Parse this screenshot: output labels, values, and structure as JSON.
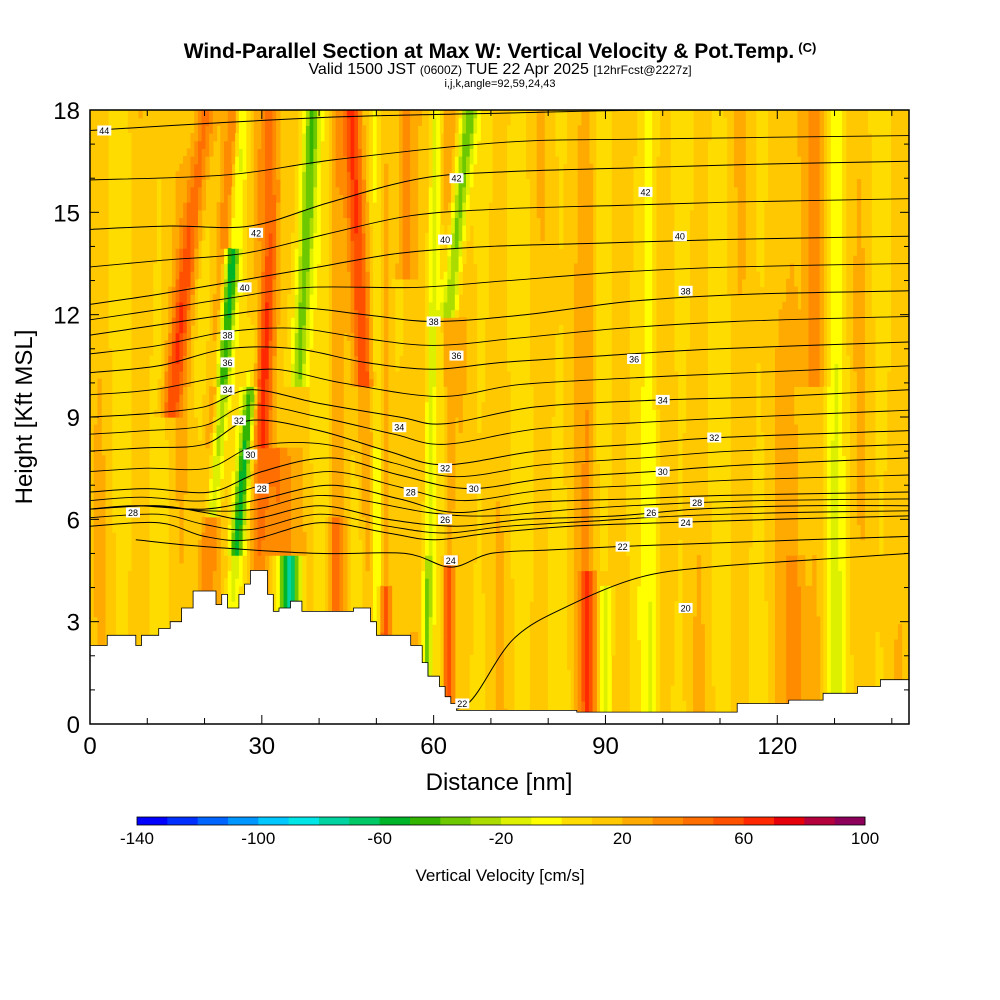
{
  "title": {
    "line1": "Wind-Parallel Section at Max W: Vertical Velocity & Pot.Temp.",
    "line1_mark": "(C)",
    "line2_a": "Valid 1500 JST",
    "line2_b": "(0600Z)",
    "line2_c": "TUE 22 Apr 2025",
    "line2_d": "[12hrFcst@2227z]",
    "line3": "i,j,k,angle=92,59,24,43"
  },
  "chart_data": {
    "type": "heatmap",
    "xlabel": "Distance [nm]",
    "ylabel": "Height [Kft MSL]",
    "xlim": [
      0,
      143
    ],
    "ylim": [
      0,
      18
    ],
    "x_ticks": [
      0,
      30,
      60,
      90,
      120
    ],
    "y_ticks": [
      0,
      3,
      6,
      9,
      12,
      15,
      18
    ],
    "colorbar": {
      "label": "Vertical Velocity [cm/s]",
      "min": -140,
      "max": 100,
      "step": 10,
      "tick_labels": [
        "-140",
        "-100",
        "-60",
        "-20",
        "20",
        "60",
        "100"
      ],
      "colors": [
        "#0000ff",
        "#0030ff",
        "#0064ff",
        "#0096ff",
        "#00c8ff",
        "#00e6e6",
        "#00d2a0",
        "#00c864",
        "#00b428",
        "#32b400",
        "#6ec800",
        "#aadc00",
        "#dcf000",
        "#ffff00",
        "#ffdc00",
        "#ffc800",
        "#ffaa00",
        "#ff8c00",
        "#ff6e00",
        "#ff5000",
        "#ff2800",
        "#e6000a",
        "#b4003c",
        "#8c005a",
        "#64008c"
      ]
    },
    "terrain": [
      [
        0,
        2.3
      ],
      [
        3,
        2.6
      ],
      [
        7,
        2.6
      ],
      [
        8,
        2.3
      ],
      [
        9,
        2.6
      ],
      [
        11,
        2.6
      ],
      [
        12,
        2.8
      ],
      [
        14,
        3.0
      ],
      [
        16,
        3.4
      ],
      [
        18,
        3.9
      ],
      [
        21,
        3.9
      ],
      [
        22,
        3.5
      ],
      [
        23,
        3.8
      ],
      [
        24,
        3.4
      ],
      [
        25,
        3.4
      ],
      [
        26,
        3.8
      ],
      [
        27,
        4.1
      ],
      [
        28,
        4.5
      ],
      [
        30,
        4.5
      ],
      [
        31,
        3.8
      ],
      [
        32,
        3.3
      ],
      [
        33,
        3.4
      ],
      [
        35,
        3.6
      ],
      [
        37,
        3.3
      ],
      [
        45,
        3.3
      ],
      [
        46,
        3.4
      ],
      [
        48,
        3.4
      ],
      [
        49,
        3.0
      ],
      [
        50,
        2.6
      ],
      [
        55,
        2.6
      ],
      [
        56,
        2.3
      ],
      [
        58,
        1.8
      ],
      [
        59,
        1.4
      ],
      [
        61,
        1.1
      ],
      [
        62,
        0.8
      ],
      [
        63,
        0.6
      ],
      [
        64,
        0.4
      ],
      [
        70,
        0.4
      ],
      [
        85,
        0.35
      ],
      [
        100,
        0.35
      ],
      [
        112,
        0.35
      ],
      [
        113,
        0.6
      ],
      [
        122,
        0.7
      ],
      [
        128,
        0.9
      ],
      [
        134,
        1.1
      ],
      [
        138,
        1.3
      ],
      [
        143,
        1.3
      ]
    ],
    "theta_contours": [
      {
        "level": 20,
        "points": [
          [
            60,
            0.5
          ],
          [
            66,
            0.6
          ],
          [
            74,
            2.5
          ],
          [
            84,
            3.5
          ],
          [
            96,
            4.3
          ],
          [
            108,
            4.6
          ],
          [
            125,
            4.8
          ],
          [
            143,
            5.0
          ]
        ]
      },
      {
        "level": 22,
        "points": [
          [
            8,
            5.4
          ],
          [
            20,
            5.2
          ],
          [
            40,
            5.0
          ],
          [
            55,
            5.0
          ],
          [
            63,
            4.6
          ],
          [
            70,
            5.0
          ],
          [
            80,
            5.1
          ],
          [
            92,
            5.2
          ],
          [
            108,
            5.3
          ],
          [
            125,
            5.4
          ],
          [
            143,
            5.5
          ]
        ]
      },
      {
        "level": 24,
        "points": [
          [
            0,
            5.8
          ],
          [
            12,
            5.9
          ],
          [
            20,
            5.5
          ],
          [
            28,
            5.4
          ],
          [
            40,
            5.9
          ],
          [
            52,
            5.6
          ],
          [
            60,
            5.4
          ],
          [
            70,
            5.6
          ],
          [
            84,
            5.8
          ],
          [
            100,
            5.9
          ],
          [
            120,
            6.0
          ],
          [
            143,
            6.1
          ]
        ]
      },
      {
        "level": 26,
        "points": [
          [
            0,
            6.3
          ],
          [
            12,
            6.4
          ],
          [
            20,
            6.2
          ],
          [
            28,
            6.0
          ],
          [
            40,
            6.4
          ],
          [
            52,
            6.0
          ],
          [
            64,
            5.8
          ],
          [
            76,
            6.0
          ],
          [
            92,
            6.1
          ],
          [
            106,
            6.3
          ],
          [
            125,
            6.4
          ],
          [
            143,
            6.4
          ]
        ]
      },
      {
        "level": 28,
        "points": [
          [
            0,
            6.3
          ],
          [
            8,
            6.4
          ],
          [
            20,
            6.3
          ],
          [
            30,
            6.6
          ],
          [
            42,
            7.0
          ],
          [
            54,
            6.6
          ],
          [
            64,
            6.2
          ],
          [
            78,
            6.5
          ],
          [
            95,
            6.6
          ],
          [
            110,
            6.7
          ],
          [
            143,
            6.8
          ]
        ]
      },
      {
        "level": 30,
        "points": [
          [
            0,
            6.8
          ],
          [
            10,
            6.9
          ],
          [
            21,
            6.8
          ],
          [
            30,
            7.4
          ],
          [
            42,
            7.8
          ],
          [
            54,
            7.3
          ],
          [
            66,
            6.9
          ],
          [
            80,
            7.2
          ],
          [
            98,
            7.4
          ],
          [
            115,
            7.6
          ],
          [
            143,
            7.8
          ]
        ]
      },
      {
        "level": 32,
        "points": [
          [
            0,
            8.0
          ],
          [
            10,
            8.1
          ],
          [
            20,
            8.2
          ],
          [
            28,
            8.9
          ],
          [
            40,
            8.6
          ],
          [
            52,
            8.0
          ],
          [
            62,
            7.6
          ],
          [
            78,
            8.0
          ],
          [
            95,
            8.2
          ],
          [
            110,
            8.4
          ],
          [
            143,
            8.6
          ]
        ]
      },
      {
        "level": 34,
        "points": [
          [
            0,
            9.0
          ],
          [
            10,
            9.1
          ],
          [
            20,
            9.3
          ],
          [
            28,
            9.8
          ],
          [
            40,
            9.4
          ],
          [
            54,
            9.0
          ],
          [
            62,
            8.8
          ],
          [
            78,
            9.3
          ],
          [
            100,
            9.5
          ],
          [
            120,
            9.6
          ],
          [
            143,
            9.8
          ]
        ]
      },
      {
        "level": 36,
        "points": [
          [
            0,
            10.3
          ],
          [
            12,
            10.5
          ],
          [
            24,
            11.0
          ],
          [
            36,
            11.0
          ],
          [
            48,
            10.6
          ],
          [
            60,
            10.4
          ],
          [
            72,
            10.6
          ],
          [
            90,
            10.8
          ],
          [
            110,
            11.0
          ],
          [
            143,
            11.2
          ]
        ]
      },
      {
        "level": 38,
        "points": [
          [
            0,
            11.4
          ],
          [
            12,
            11.7
          ],
          [
            24,
            12.0
          ],
          [
            36,
            12.2
          ],
          [
            48,
            12.0
          ],
          [
            60,
            11.8
          ],
          [
            76,
            12.0
          ],
          [
            95,
            12.4
          ],
          [
            115,
            12.6
          ],
          [
            143,
            12.7
          ]
        ]
      },
      {
        "level": 40,
        "points": [
          [
            0,
            12.3
          ],
          [
            12,
            12.6
          ],
          [
            26,
            13.0
          ],
          [
            40,
            13.4
          ],
          [
            54,
            13.8
          ],
          [
            70,
            14.0
          ],
          [
            90,
            14.1
          ],
          [
            110,
            14.2
          ],
          [
            143,
            14.3
          ]
        ]
      },
      {
        "level": 42,
        "points": [
          [
            0,
            14.5
          ],
          [
            14,
            14.6
          ],
          [
            28,
            14.6
          ],
          [
            42,
            15.3
          ],
          [
            58,
            16.0
          ],
          [
            74,
            16.2
          ],
          [
            94,
            16.3
          ],
          [
            114,
            16.4
          ],
          [
            143,
            16.5
          ]
        ]
      },
      {
        "level": 44,
        "points": [
          [
            0,
            17.4
          ],
          [
            20,
            17.6
          ],
          [
            44,
            17.8
          ],
          [
            70,
            17.9
          ],
          [
            100,
            18.0
          ],
          [
            143,
            18.0
          ]
        ]
      }
    ],
    "contour_labels": [
      {
        "text": "44",
        "x": 2.5,
        "y": 17.4
      },
      {
        "text": "42",
        "x": 64,
        "y": 16.0
      },
      {
        "text": "42",
        "x": 97,
        "y": 15.6
      },
      {
        "text": "42",
        "x": 29,
        "y": 14.4
      },
      {
        "text": "40",
        "x": 62,
        "y": 14.2
      },
      {
        "text": "40",
        "x": 103,
        "y": 14.3
      },
      {
        "text": "40",
        "x": 27,
        "y": 12.8
      },
      {
        "text": "38",
        "x": 104,
        "y": 12.7
      },
      {
        "text": "38",
        "x": 60,
        "y": 11.8
      },
      {
        "text": "38",
        "x": 24,
        "y": 11.4
      },
      {
        "text": "36",
        "x": 24,
        "y": 10.6
      },
      {
        "text": "36",
        "x": 64,
        "y": 10.8
      },
      {
        "text": "36",
        "x": 95,
        "y": 10.7
      },
      {
        "text": "34",
        "x": 24,
        "y": 9.8
      },
      {
        "text": "34",
        "x": 100,
        "y": 9.5
      },
      {
        "text": "34",
        "x": 54,
        "y": 8.7
      },
      {
        "text": "32",
        "x": 26,
        "y": 8.9
      },
      {
        "text": "32",
        "x": 109,
        "y": 8.4
      },
      {
        "text": "32",
        "x": 62,
        "y": 7.5
      },
      {
        "text": "30",
        "x": 28,
        "y": 7.9
      },
      {
        "text": "30",
        "x": 67,
        "y": 6.9
      },
      {
        "text": "30",
        "x": 100,
        "y": 7.4
      },
      {
        "text": "28",
        "x": 30,
        "y": 6.9
      },
      {
        "text": "28",
        "x": 56,
        "y": 6.8
      },
      {
        "text": "28",
        "x": 106,
        "y": 6.5
      },
      {
        "text": "28",
        "x": 7.5,
        "y": 6.2
      },
      {
        "text": "26",
        "x": 62,
        "y": 6.0
      },
      {
        "text": "26",
        "x": 98,
        "y": 6.2
      },
      {
        "text": "24",
        "x": 104,
        "y": 5.9
      },
      {
        "text": "24",
        "x": 63,
        "y": 4.8
      },
      {
        "text": "22",
        "x": 93,
        "y": 5.2
      },
      {
        "text": "22",
        "x": 65,
        "y": 0.6
      },
      {
        "text": "20",
        "x": 104,
        "y": 3.4
      }
    ]
  }
}
